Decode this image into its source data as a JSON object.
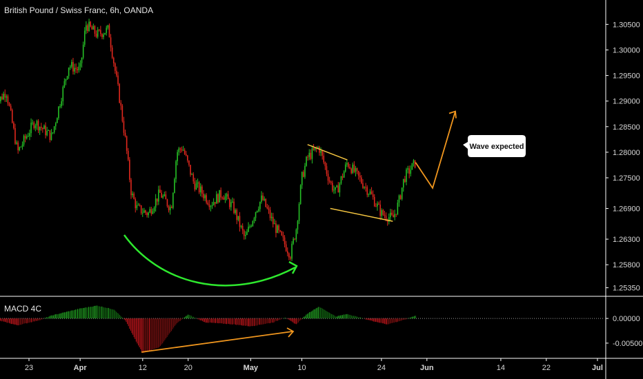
{
  "header": {
    "title": "British Pound / Swiss Franc, 6h, OANDA"
  },
  "indicator": {
    "title": "MACD 4C"
  },
  "annotation": {
    "callout": "Wave expected"
  },
  "colors": {
    "background": "#000000",
    "up_candle": "#26c026",
    "down_candle": "#e0281e",
    "grid": "#1a1a1a",
    "axis_line": "#ffffff",
    "macd_pos_strong": "#22a322",
    "macd_neg_strong": "#c4161c",
    "curve_green": "#2ee82e",
    "arrow_orange": "#f0961e",
    "flag_line": "#f3c440"
  },
  "chart_data": [
    {
      "type": "candlestick",
      "title": "British Pound / Swiss Franc, 6h, OANDA",
      "y_ticks": [
        "1.30500",
        "1.30000",
        "1.29500",
        "1.29000",
        "1.28500",
        "1.28000",
        "1.27500",
        "1.26900",
        "1.26300",
        "1.25800",
        "1.25350"
      ],
      "x_ticks": [
        {
          "label": "23",
          "bold": false
        },
        {
          "label": "Apr",
          "bold": true
        },
        {
          "label": "12",
          "bold": false
        },
        {
          "label": "20",
          "bold": false
        },
        {
          "label": "May",
          "bold": true
        },
        {
          "label": "10",
          "bold": false
        },
        {
          "label": "24",
          "bold": false
        },
        {
          "label": "Jun",
          "bold": true
        },
        {
          "label": "14",
          "bold": false
        },
        {
          "label": "22",
          "bold": false
        },
        {
          "label": "Jul",
          "bold": true
        }
      ],
      "ylim": [
        1.2525,
        1.3068
      ],
      "series": [
        {
          "name": "",
          "close_path": [
            [
              "Mar 17",
              1.289
            ],
            [
              "Mar 19",
              1.292
            ],
            [
              "Mar 21",
              1.28
            ],
            [
              "Mar 24",
              1.286
            ],
            [
              "Mar 27",
              1.283
            ],
            [
              "Mar 30",
              1.297
            ],
            [
              "Apr 1",
              1.296
            ],
            [
              "Apr 2",
              1.305
            ],
            [
              "Apr 4",
              1.303
            ],
            [
              "Apr 6",
              1.304
            ],
            [
              "Apr 8",
              1.29
            ],
            [
              "Apr 9",
              1.282
            ],
            [
              "Apr 10",
              1.272
            ],
            [
              "Apr 11",
              1.269
            ],
            [
              "Apr 13",
              1.268
            ],
            [
              "Apr 15",
              1.272
            ],
            [
              "Apr 17",
              1.269
            ],
            [
              "Apr 18",
              1.28
            ],
            [
              "Apr 19",
              1.281
            ],
            [
              "Apr 21",
              1.274
            ],
            [
              "Apr 24",
              1.27
            ],
            [
              "Apr 26",
              1.272
            ],
            [
              "Apr 28",
              1.269
            ],
            [
              "Apr 30",
              1.263
            ],
            [
              "May 2",
              1.269
            ],
            [
              "May 3",
              1.271
            ],
            [
              "May 5",
              1.266
            ],
            [
              "May 7",
              1.262
            ],
            [
              "May 8",
              1.26
            ],
            [
              "May 9",
              1.265
            ],
            [
              "May 10",
              1.275
            ],
            [
              "May 11",
              1.279
            ],
            [
              "May 13",
              1.281
            ],
            [
              "May 15",
              1.274
            ],
            [
              "May 16",
              1.272
            ],
            [
              "May 18",
              1.278
            ],
            [
              "May 20",
              1.275
            ],
            [
              "May 22",
              1.272
            ],
            [
              "May 24",
              1.268
            ],
            [
              "May 26",
              1.267
            ],
            [
              "May 27",
              1.27
            ],
            [
              "May 28",
              1.275
            ],
            [
              "May 30",
              1.278
            ]
          ]
        }
      ],
      "annotations": {
        "flag_upper": [
          [
            "May 11",
            1.2815
          ],
          [
            "May 18",
            1.2785
          ]
        ],
        "flag_lower": [
          [
            "May 15",
            1.269
          ],
          [
            "May 26",
            1.2665
          ]
        ],
        "projected_wave": [
          [
            "May 30",
            1.278
          ],
          [
            "Jun 2",
            1.273
          ],
          [
            "Jun 6",
            1.288
          ]
        ]
      }
    },
    {
      "type": "bar",
      "title": "MACD 4C",
      "y_ticks": [
        "0.00000",
        "-0.00500"
      ],
      "ylim": [
        -0.0078,
        0.0042
      ],
      "series": [
        {
          "name": "",
          "key_points": [
            [
              "Mar 17",
              -0.0002
            ],
            [
              "Mar 21",
              -0.0014
            ],
            [
              "Mar 25",
              -0.0003
            ],
            [
              "Mar 27",
              0.0006
            ],
            [
              "Apr 1",
              0.002
            ],
            [
              "Apr 4",
              0.0026
            ],
            [
              "Apr 7",
              0.0018
            ],
            [
              "Apr 9",
              -0.0005
            ],
            [
              "Apr 11",
              -0.005
            ],
            [
              "Apr 12",
              -0.007
            ],
            [
              "Apr 15",
              -0.0058
            ],
            [
              "Apr 18",
              -0.001
            ],
            [
              "Apr 20",
              0.0008
            ],
            [
              "Apr 23",
              -0.0008
            ],
            [
              "Apr 28",
              -0.0012
            ],
            [
              "May 1",
              -0.0016
            ],
            [
              "May 5",
              -0.0008
            ],
            [
              "May 7",
              0.0002
            ],
            [
              "May 9",
              -0.0012
            ],
            [
              "May 11",
              0.001
            ],
            [
              "May 13",
              0.0024
            ],
            [
              "May 16",
              0.0004
            ],
            [
              "May 18",
              0.0009
            ],
            [
              "May 22",
              -0.0004
            ],
            [
              "May 25",
              -0.0012
            ],
            [
              "May 28",
              -0.0003
            ],
            [
              "May 30",
              0.0006
            ]
          ]
        }
      ]
    }
  ]
}
